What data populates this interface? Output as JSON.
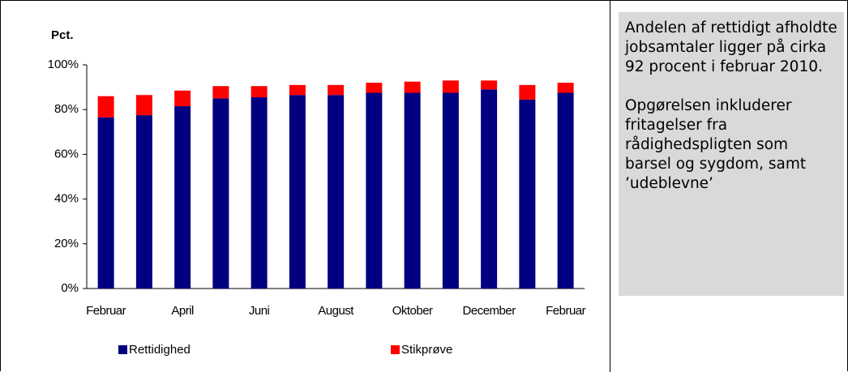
{
  "chart_data": {
    "type": "bar",
    "stacked": true,
    "y_label": "Pct.",
    "categories": [
      "Februar",
      null,
      "April",
      null,
      "Juni",
      null,
      "August",
      null,
      "Oktober",
      null,
      "December",
      null,
      "Februar"
    ],
    "series": [
      {
        "name": "Rettidighed",
        "color": "#000080",
        "values": [
          76.5,
          77.5,
          81.5,
          85,
          85.5,
          86.5,
          86.5,
          87.5,
          87.5,
          87.5,
          89,
          84.5,
          87.5
        ]
      },
      {
        "name": "Stikprøve",
        "color": "#ff0000",
        "values": [
          9.5,
          9,
          7,
          5.5,
          5,
          4.5,
          4.5,
          4.5,
          5,
          5.5,
          4,
          6.5,
          4.5
        ]
      }
    ],
    "ylim": [
      0,
      100
    ],
    "yticks": [
      {
        "value": 0,
        "label": "0%"
      },
      {
        "value": 20,
        "label": "20%"
      },
      {
        "value": 40,
        "label": "40%"
      },
      {
        "value": 60,
        "label": "60%"
      },
      {
        "value": 80,
        "label": "80%"
      },
      {
        "value": 100,
        "label": "100%"
      }
    ],
    "grid": false,
    "legend": "bottom"
  },
  "sidebar": {
    "paragraphs": [
      "Andelen af rettidigt afholdte jobsamtaler ligger på cirka 92 procent i februar 2010.",
      "Opgørelsen inkluderer fritagelser fra rådighedspligten som barsel og sygdom, samt ’udeblevne’"
    ]
  }
}
